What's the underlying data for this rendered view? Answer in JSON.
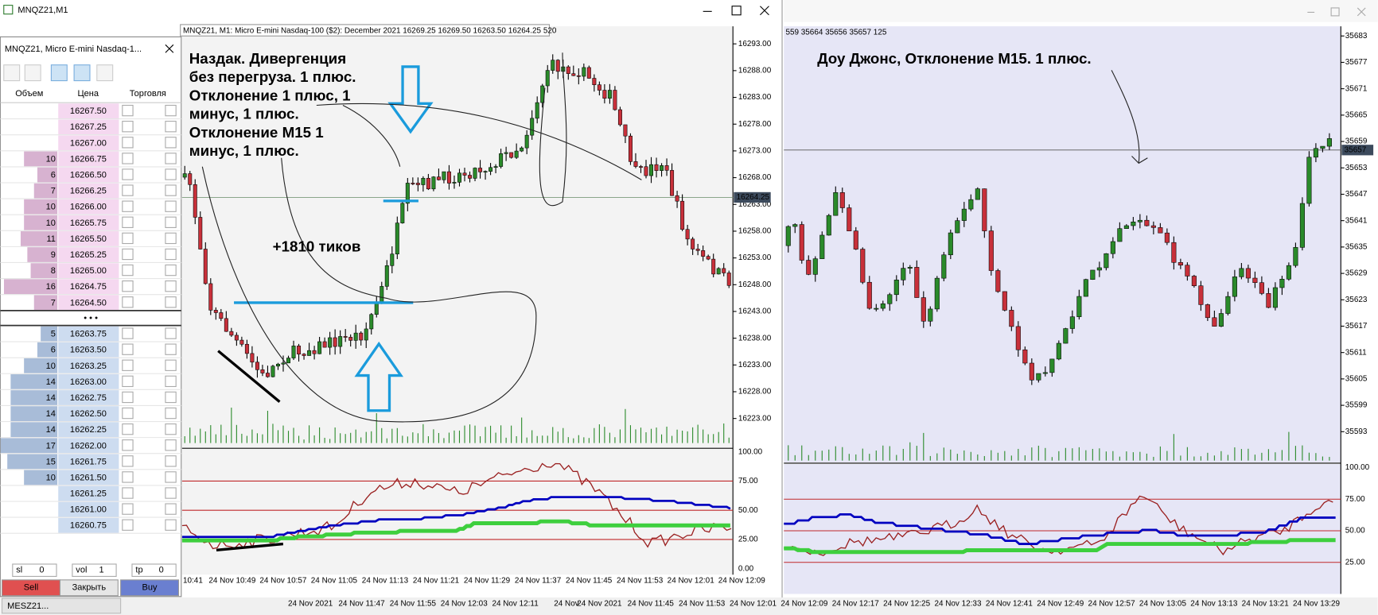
{
  "window_title": "MNQZ21,M1",
  "chart_info": "MNQZ21, M1:  Micro E-mini Nasdaq-100 ($2): December 2021  16269.25 16269.50 16263.50 16264.25  520",
  "price_axis": [
    "16293.00",
    "16288.00",
    "16283.00",
    "16278.00",
    "16273.00",
    "16268.00",
    "16263.00",
    "16258.00",
    "16253.00",
    "16248.00",
    "16243.00",
    "16238.00",
    "16233.00",
    "16228.00",
    "16223.00"
  ],
  "price_current": "16264.25",
  "indicator_axis": [
    "100.00",
    "75.00",
    "50.00",
    "25.00",
    "0.00"
  ],
  "time_axis": [
    "10:41",
    "24 Nov 10:49",
    "24 Nov 10:57",
    "24 Nov 11:05",
    "24 Nov 11:13",
    "24 Nov 11:21",
    "24 Nov 11:29",
    "24 Nov 11:37",
    "24 Nov 11:45",
    "24 Nov 11:53",
    "24 Nov 12:01",
    "24 Nov 12:09"
  ],
  "annotations": {
    "nasdaq": [
      "Наздак. Дивергенция",
      "без перегруза. 1 плюс.",
      "Отклонение 1 плюс, 1",
      "минус, 1 плюс.",
      "Отклонение М15 1",
      "минус, 1 плюс."
    ],
    "ticks": "+1810 тиков",
    "dow": "Доу Джонс, Отклонение М15. 1 плюс."
  },
  "order_book": {
    "title": "MNQZ21, Micro E-mini Nasdaq-1...",
    "headers": [
      "Объем",
      "Цена",
      "Торговля"
    ],
    "asks": [
      {
        "volume": null,
        "price": "16267.50"
      },
      {
        "volume": null,
        "price": "16267.25"
      },
      {
        "volume": null,
        "price": "16267.00"
      },
      {
        "volume": 10,
        "price": "16266.75"
      },
      {
        "volume": 6,
        "price": "16266.50"
      },
      {
        "volume": 7,
        "price": "16266.25"
      },
      {
        "volume": 10,
        "price": "16266.00"
      },
      {
        "volume": 10,
        "price": "16265.75"
      },
      {
        "volume": 11,
        "price": "16265.50"
      },
      {
        "volume": 9,
        "price": "16265.25"
      },
      {
        "volume": 8,
        "price": "16265.00"
      },
      {
        "volume": 16,
        "price": "16264.75"
      },
      {
        "volume": 7,
        "price": "16264.50"
      }
    ],
    "bids": [
      {
        "volume": 5,
        "price": "16263.75"
      },
      {
        "volume": 6,
        "price": "16263.50"
      },
      {
        "volume": 10,
        "price": "16263.25"
      },
      {
        "volume": 14,
        "price": "16263.00"
      },
      {
        "volume": 14,
        "price": "16262.75"
      },
      {
        "volume": 14,
        "price": "16262.50"
      },
      {
        "volume": 14,
        "price": "16262.25"
      },
      {
        "volume": 17,
        "price": "16262.00"
      },
      {
        "volume": 15,
        "price": "16261.75"
      },
      {
        "volume": 10,
        "price": "16261.50"
      },
      {
        "volume": null,
        "price": "16261.25"
      },
      {
        "volume": null,
        "price": "16261.00"
      },
      {
        "volume": null,
        "price": "16260.75"
      }
    ]
  },
  "trade_panel": {
    "sl_label": "sl",
    "sl": 0,
    "vol_label": "vol",
    "vol": 1,
    "tp_label": "tp",
    "tp": 0,
    "sell": "Sell",
    "close": "Закрыть",
    "buy": "Buy"
  },
  "right_chart": {
    "info": "559 35664 35656 35657  125",
    "price_axis": [
      "35683",
      "35677",
      "35671",
      "35665",
      "35659",
      "35653",
      "35647",
      "35641",
      "35635",
      "35629",
      "35623",
      "35617",
      "35611",
      "35605",
      "35599",
      "35593"
    ],
    "price_current": "35657",
    "indicator_axis": [
      "100.00",
      "75.00",
      "50.00",
      "25.00"
    ],
    "time_axis": [
      "24 Nov 2021",
      "24 Nov 11:45",
      "24 Nov 11:53",
      "24 Nov 12:01",
      "24 Nov 12:09",
      "24 Nov 12:17",
      "24 Nov 12:25",
      "24 Nov 12:33",
      "24 Nov 12:41",
      "24 Nov 12:49",
      "24 Nov 12:57",
      "24 Nov 13:05",
      "24 Nov 13:13",
      "24 Nov 13:21",
      "24 Nov 13:29"
    ]
  },
  "bottom": {
    "tab": "MESZ21...",
    "time_axis": [
      "24 Nov 2021",
      "24 Nov 11:47",
      "24 Nov 11:55",
      "24 Nov 12:03",
      "24 Nov 12:11",
      "24 Nov"
    ]
  }
}
